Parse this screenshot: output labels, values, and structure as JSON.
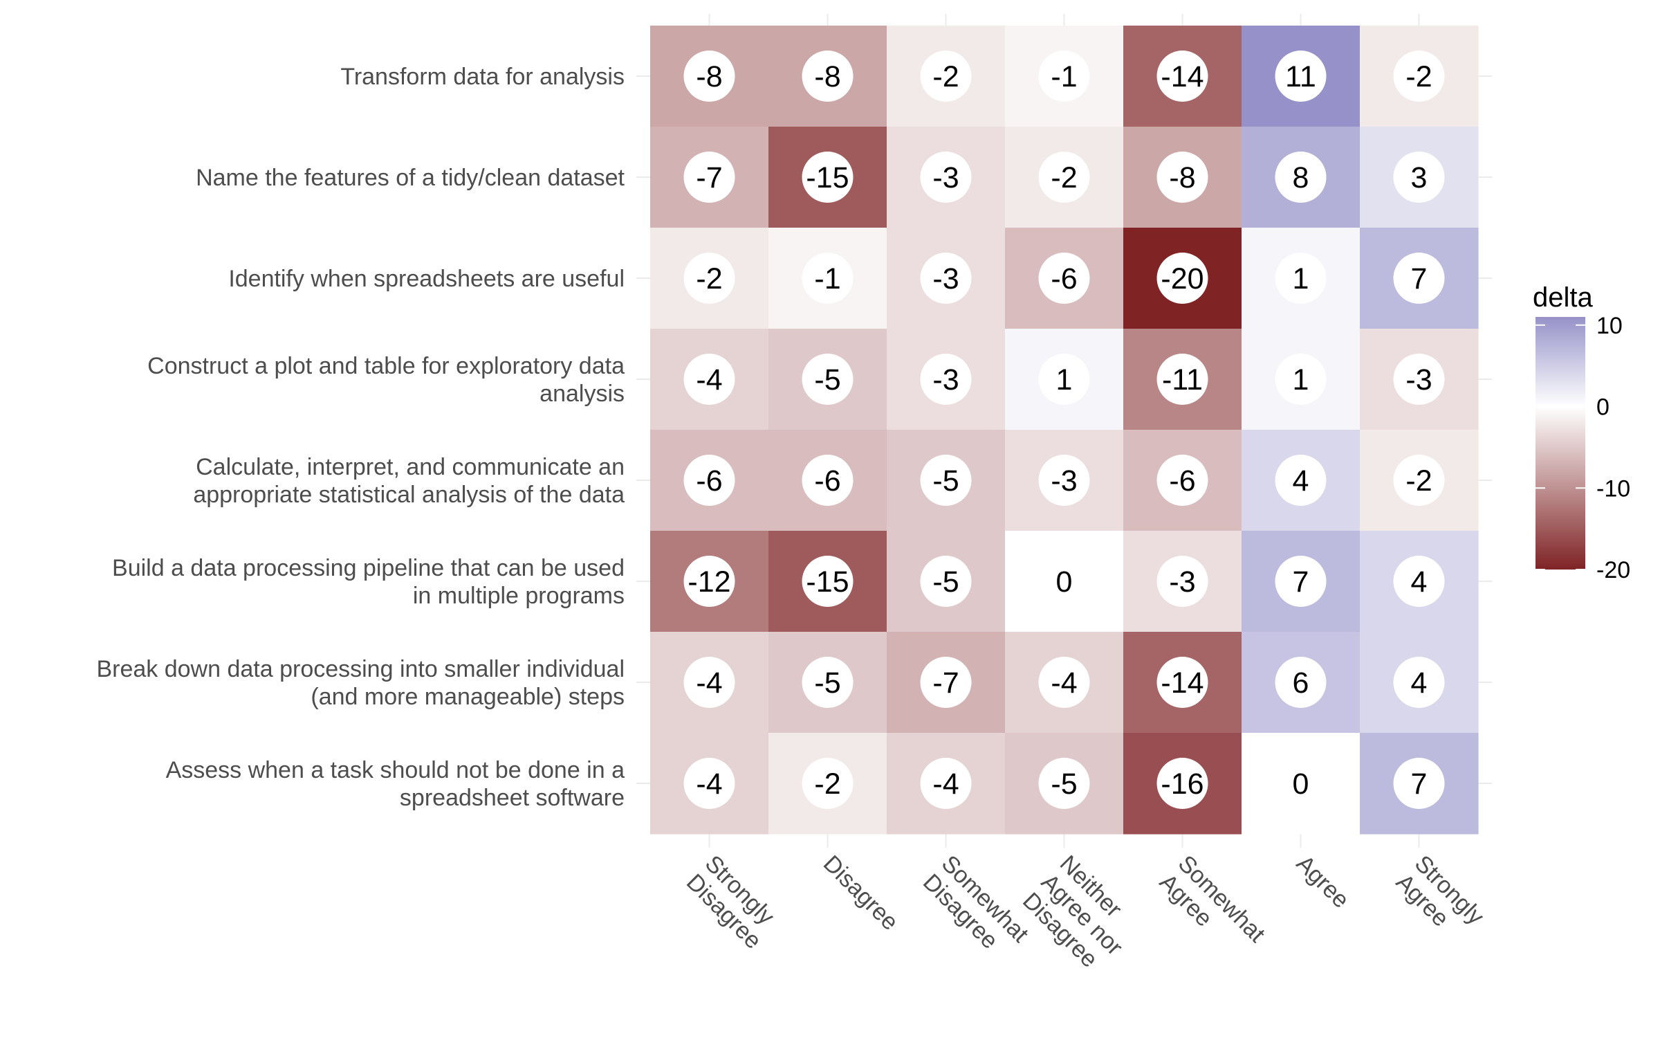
{
  "chart_data": {
    "type": "heatmap",
    "title": "",
    "xlabel": "",
    "ylabel": "",
    "legend": {
      "title": "delta",
      "position": "right",
      "ticks": [
        10,
        0,
        -10,
        -20
      ],
      "range": [
        -20,
        11
      ]
    },
    "colors": {
      "low": "#7f2325",
      "mid": "#ffffff",
      "high": "#9692c9"
    },
    "grid": true,
    "x_categories": [
      [
        "Strongly",
        "Disagree"
      ],
      [
        "Disagree"
      ],
      [
        "Somewhat",
        "Disagree"
      ],
      [
        "Neither",
        "Agree nor",
        "Disagree"
      ],
      [
        "Somewhat",
        "Agree"
      ],
      [
        "Agree"
      ],
      [
        "Strongly",
        "Agree"
      ]
    ],
    "y_categories": [
      [
        "Transform data for analysis"
      ],
      [
        "Name the features of a tidy/clean dataset"
      ],
      [
        "Identify when spreadsheets are useful"
      ],
      [
        "Construct a plot and table for exploratory data",
        "analysis"
      ],
      [
        "Calculate, interpret, and communicate an",
        "appropriate statistical analysis of the data"
      ],
      [
        "Build a data processing pipeline that can be used",
        "in multiple programs"
      ],
      [
        "Break down data processing into smaller individual",
        "(and more manageable) steps"
      ],
      [
        "Assess when a task should not be done in a",
        "spreadsheet software"
      ]
    ],
    "values": [
      [
        -8,
        -8,
        -2,
        -1,
        -14,
        11,
        -2
      ],
      [
        -7,
        -15,
        -3,
        -2,
        -8,
        8,
        3
      ],
      [
        -2,
        -1,
        -3,
        -6,
        -20,
        1,
        7
      ],
      [
        -4,
        -5,
        -3,
        1,
        -11,
        1,
        -3
      ],
      [
        -6,
        -6,
        -5,
        -3,
        -6,
        4,
        -2
      ],
      [
        -12,
        -15,
        -5,
        0,
        -3,
        7,
        4
      ],
      [
        -4,
        -5,
        -7,
        -4,
        -14,
        6,
        4
      ],
      [
        -4,
        -2,
        -4,
        -5,
        -16,
        0,
        7
      ]
    ]
  }
}
